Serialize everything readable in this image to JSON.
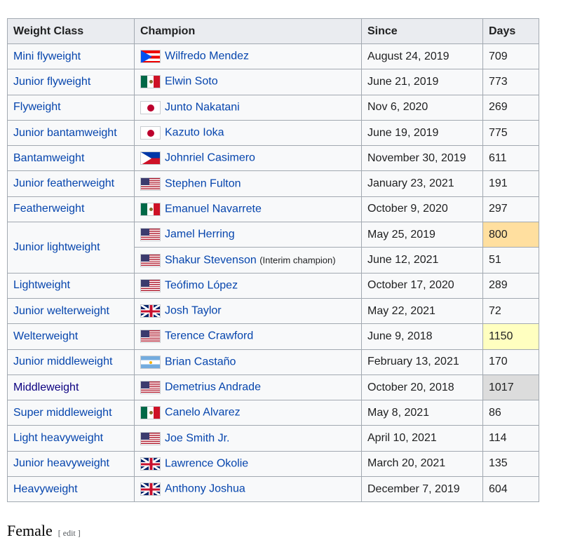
{
  "header": {
    "weight_class": "Weight Class",
    "champion": "Champion",
    "since": "Since",
    "days": "Days"
  },
  "rows": [
    {
      "weight_class": "Mini flyweight",
      "flag": "flag-puerto-rico",
      "champion": "Wilfredo Mendez",
      "since": "August 24, 2019",
      "days": "709"
    },
    {
      "weight_class": "Junior flyweight",
      "flag": "flag-mexico",
      "champion": "Elwin Soto",
      "since": "June 21, 2019",
      "days": "773"
    },
    {
      "weight_class": "Flyweight",
      "flag": "flag-japan",
      "champion": "Junto Nakatani",
      "since": "Nov 6, 2020",
      "days": "269"
    },
    {
      "weight_class": "Junior bantamweight",
      "flag": "flag-japan",
      "champion": "Kazuto Ioka",
      "since": "June 19, 2019",
      "days": "775"
    },
    {
      "weight_class": "Bantamweight",
      "flag": "flag-philippines",
      "champion": "Johnriel Casimero",
      "since": "November 30, 2019",
      "days": "611"
    },
    {
      "weight_class": "Junior featherweight",
      "flag": "flag-usa",
      "champion": "Stephen Fulton",
      "since": "January 23, 2021",
      "days": "191"
    },
    {
      "weight_class": "Featherweight",
      "flag": "flag-mexico",
      "champion": "Emanuel Navarrete",
      "since": "October 9, 2020",
      "days": "297"
    },
    {
      "weight_class": "Junior lightweight",
      "flag": "flag-usa",
      "champion": "Jamel Herring",
      "since": "May 25, 2019",
      "days": "800"
    },
    {
      "weight_class": "",
      "flag": "flag-usa",
      "champion": "Shakur Stevenson",
      "note": "(Interim champion)",
      "since": "June 12, 2021",
      "days": "51"
    },
    {
      "weight_class": "Lightweight",
      "flag": "flag-usa",
      "champion": "Teófimo López",
      "since": "October 17, 2020",
      "days": "289"
    },
    {
      "weight_class": "Junior welterweight",
      "flag": "flag-uk",
      "champion": "Josh Taylor",
      "since": "May 22, 2021",
      "days": "72"
    },
    {
      "weight_class": "Welterweight",
      "flag": "flag-usa",
      "champion": "Terence Crawford",
      "since": "June 9, 2018",
      "days": "1150"
    },
    {
      "weight_class": "Junior middleweight",
      "flag": "flag-argentina",
      "champion": "Brian Castaño",
      "since": "February 13, 2021",
      "days": "170"
    },
    {
      "weight_class": "Middleweight",
      "flag": "flag-usa",
      "champion": "Demetrius Andrade",
      "since": "October 20, 2018",
      "days": "1017"
    },
    {
      "weight_class": "Super middleweight",
      "flag": "flag-mexico",
      "champion": "Canelo Alvarez",
      "since": "May 8, 2021",
      "days": "86"
    },
    {
      "weight_class": "Light heavyweight",
      "flag": "flag-usa",
      "champion": "Joe Smith Jr.",
      "since": "April 10, 2021",
      "days": "114"
    },
    {
      "weight_class": "Junior heavyweight",
      "flag": "flag-uk",
      "champion": "Lawrence Okolie",
      "since": "March 20, 2021",
      "days": "135"
    },
    {
      "weight_class": "Heavyweight",
      "flag": "flag-uk",
      "champion": "Anthony Joshua",
      "since": "December 7, 2019",
      "days": "604"
    }
  ],
  "highlight_colors": {
    "longest": "#ffdf9f",
    "second": "#ffffc0",
    "third": "#dcdcdc"
  },
  "footer": {
    "heading": "Female",
    "edit": "[ edit ]"
  }
}
